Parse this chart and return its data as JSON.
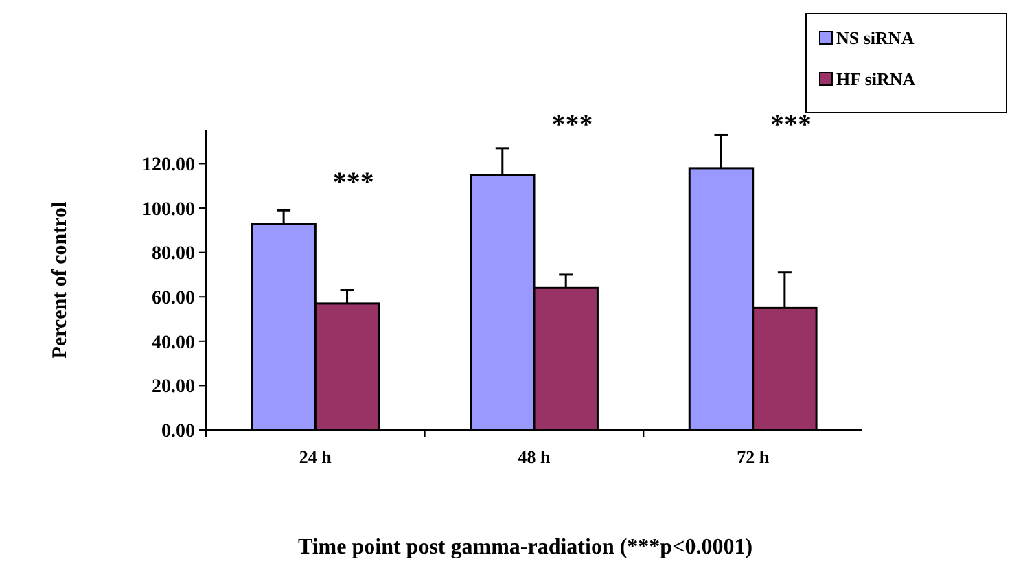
{
  "chart_data": {
    "type": "bar",
    "xlabel": "Time point post gamma-radiation (***p<0.0001)",
    "ylabel": "Percent of control",
    "categories": [
      "24 h",
      "48 h",
      "72 h"
    ],
    "series": [
      {
        "name": "NS siRNA",
        "color": "#9999ff",
        "values": [
          93,
          115,
          118
        ],
        "errors": [
          6,
          12,
          15
        ]
      },
      {
        "name": "HF siRNA",
        "color": "#993366",
        "values": [
          57,
          64,
          55
        ],
        "errors": [
          6,
          6,
          16
        ]
      }
    ],
    "ylim": [
      0,
      135
    ],
    "yticks": [
      {
        "value": 0,
        "label": "0.00"
      },
      {
        "value": 20,
        "label": "20.00"
      },
      {
        "value": 40,
        "label": "40.00"
      },
      {
        "value": 60,
        "label": "60.00"
      },
      {
        "value": 80,
        "label": "80.00"
      },
      {
        "value": 100,
        "label": "100.00"
      },
      {
        "value": 120,
        "label": "120.00"
      }
    ],
    "annotations": [
      "***",
      "***",
      "***"
    ],
    "grid": false,
    "legend": "top right"
  }
}
